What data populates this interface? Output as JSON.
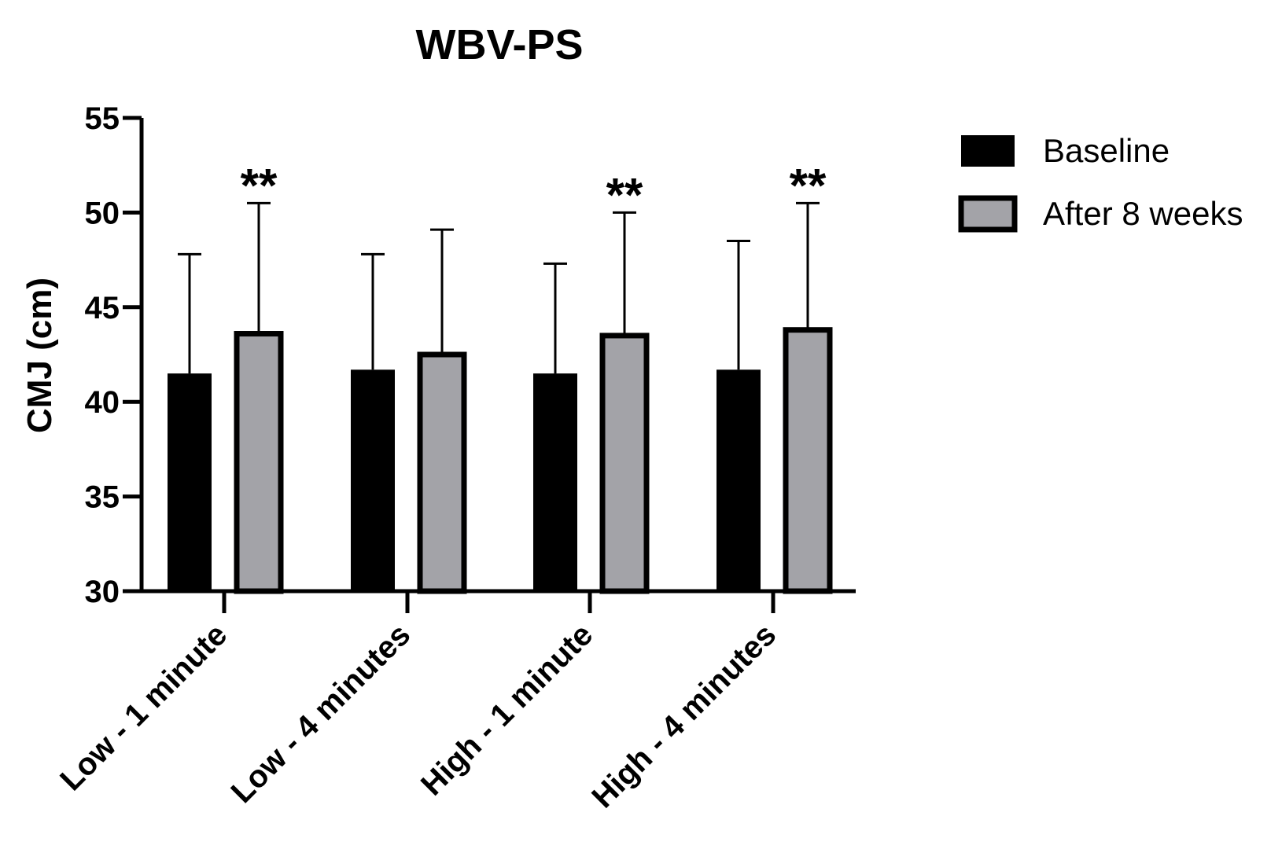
{
  "chart_data": {
    "type": "bar",
    "title": "WBV-PS",
    "ylabel": "CMJ (cm)",
    "xlabel": "",
    "ylim": [
      30,
      55
    ],
    "yticks": [
      30,
      35,
      40,
      45,
      50,
      55
    ],
    "categories": [
      "Low - 1 minute",
      "Low - 4 minutes",
      "High - 1 minute",
      "High - 4 minutes"
    ],
    "series": [
      {
        "name": "Baseline",
        "color": "#000000",
        "values": [
          41.5,
          41.7,
          41.5,
          41.7
        ],
        "error_upper": [
          47.8,
          47.8,
          47.3,
          48.5
        ]
      },
      {
        "name": "After 8 weeks",
        "color": "#a3a3a8",
        "values": [
          43.6,
          42.5,
          43.5,
          43.8
        ],
        "error_upper": [
          50.5,
          49.1,
          50.0,
          50.5
        ]
      }
    ],
    "annotations": [
      {
        "category": "Low - 1 minute",
        "series": "After 8 weeks",
        "text": "**"
      },
      {
        "category": "High - 1 minute",
        "series": "After 8 weeks",
        "text": "**"
      },
      {
        "category": "High - 4 minutes",
        "series": "After 8 weeks",
        "text": "**"
      }
    ],
    "legend_position": "top-right",
    "grid": false
  }
}
